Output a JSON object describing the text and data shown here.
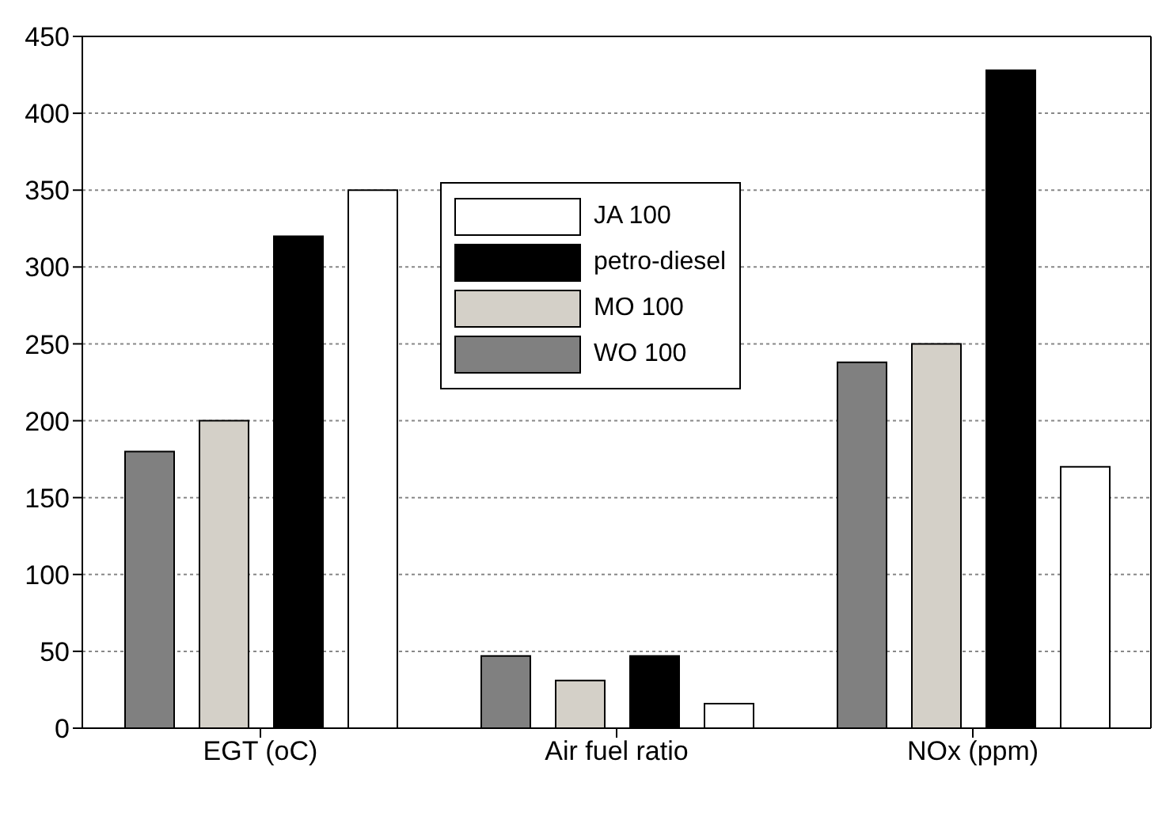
{
  "chart_data": {
    "type": "bar",
    "categories": [
      "EGT (oC)",
      "Air fuel ratio",
      "NOx (ppm)"
    ],
    "series": [
      {
        "name": "WO 100",
        "color": "#808080",
        "values": [
          180,
          47,
          238
        ]
      },
      {
        "name": "MO 100",
        "color": "#d4d0c8",
        "values": [
          200,
          31,
          250
        ]
      },
      {
        "name": "petro-diesel",
        "color": "#000000",
        "values": [
          320,
          47,
          428
        ]
      },
      {
        "name": "JA 100",
        "color": "#ffffff",
        "values": [
          350,
          16,
          170
        ]
      }
    ],
    "ylim": [
      0,
      450
    ],
    "yticks": [
      0,
      50,
      100,
      150,
      200,
      250,
      300,
      350,
      400,
      450
    ],
    "grid": "y",
    "legend": "top"
  }
}
